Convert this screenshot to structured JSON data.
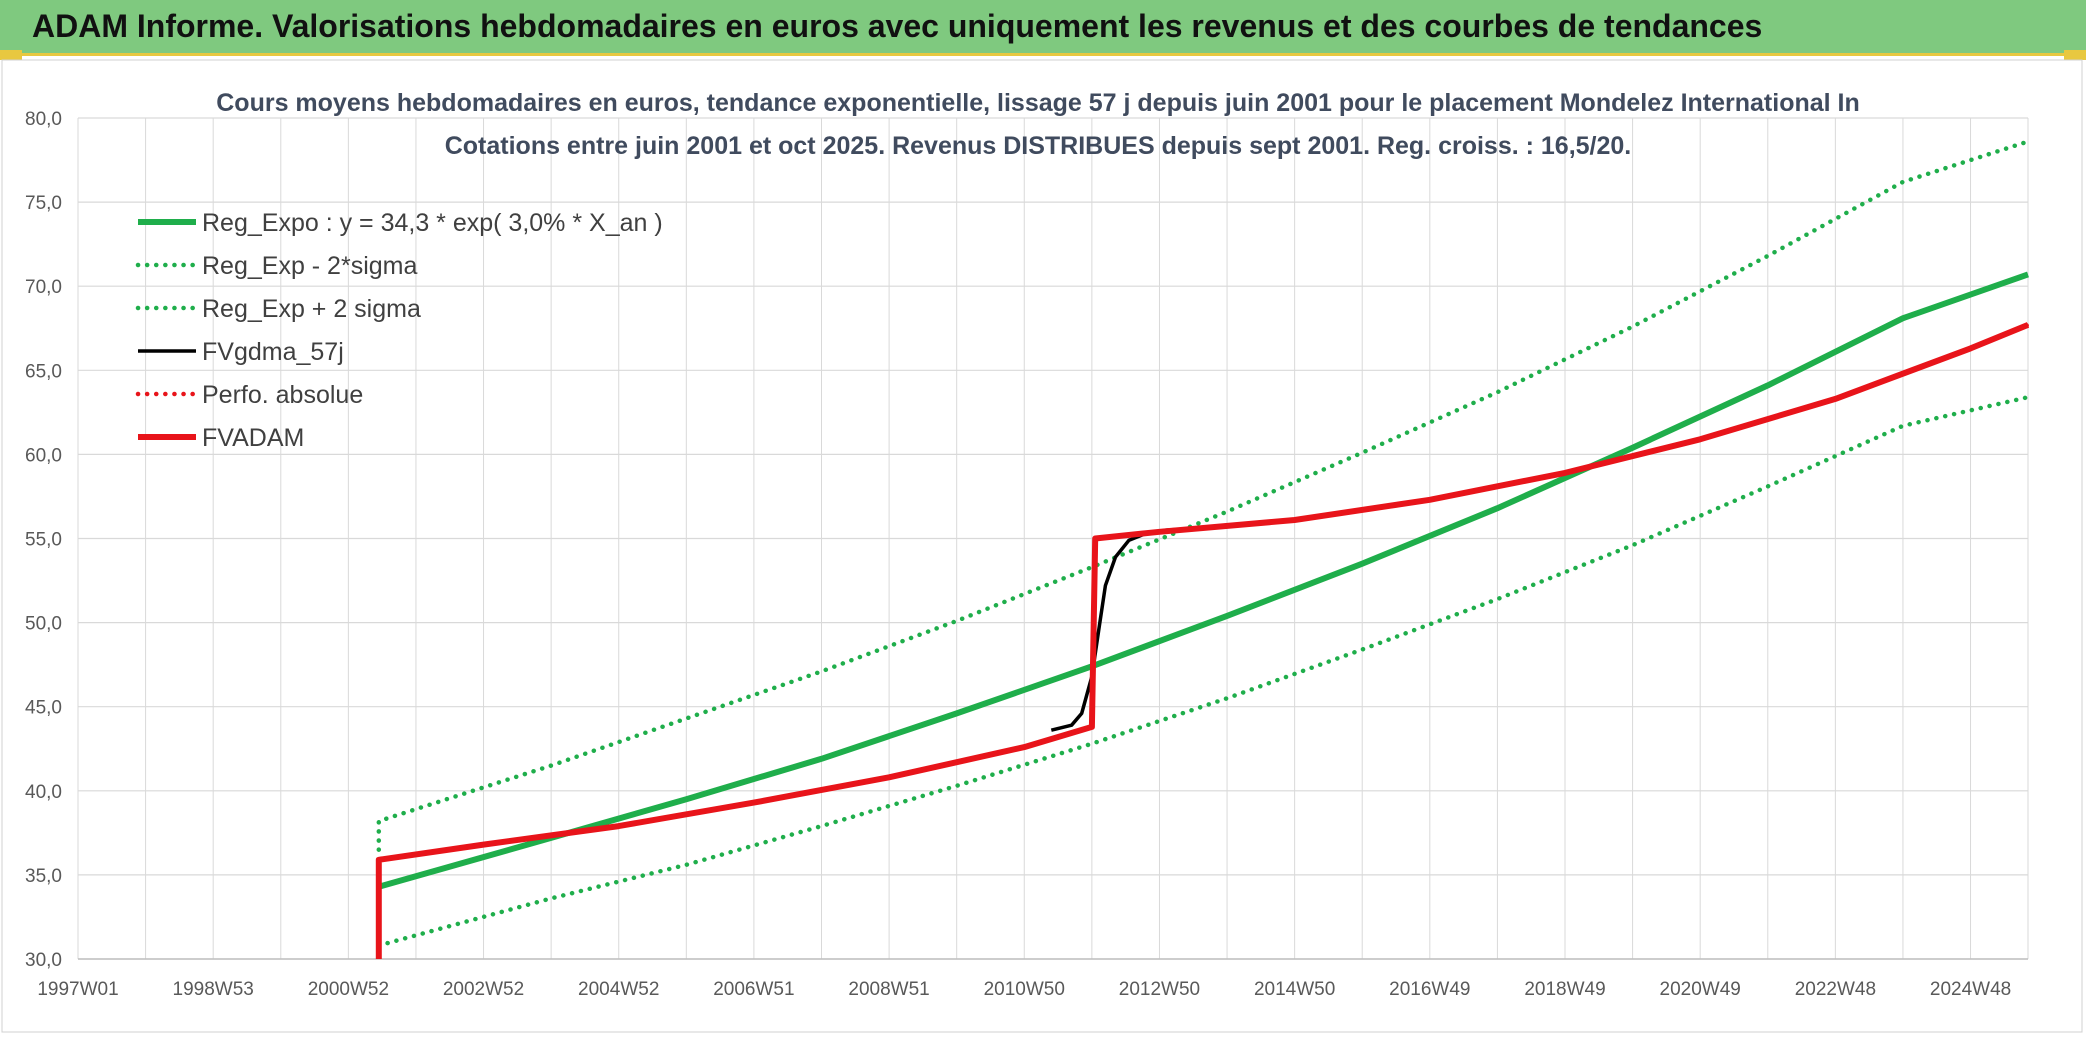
{
  "banner": {
    "title": "ADAM Informe. Valorisations hebdomadaires en euros avec uniquement les revenus et des courbes de tendances"
  },
  "colors": {
    "banner_bg": "#7fc97f",
    "accent": "#e8c840",
    "green": "#1fae4b",
    "red": "#e8141a",
    "black": "#000000",
    "grid": "#d9d9d9"
  },
  "chart_data": {
    "type": "line",
    "title_lines": [
      "Cours moyens hebdomadaires en euros, tendance exponentielle, lissage 57 j depuis juin 2001 pour le placement Mondelez International In",
      "Cotations entre juin 2001 et oct 2025. Revenus DISTRIBUES depuis sept 2001. Reg. croiss. : 16,5/20."
    ],
    "xlabel": "",
    "ylabel": "",
    "ylim": [
      30,
      80
    ],
    "xlim": [
      1997.0,
      2025.85
    ],
    "y_ticks": [
      "30,0",
      "35,0",
      "40,0",
      "45,0",
      "50,0",
      "55,0",
      "60,0",
      "65,0",
      "70,0",
      "75,0",
      "80,0"
    ],
    "x_ticks": [
      {
        "label": "1997W01",
        "year": 1997.0
      },
      {
        "label": "1998W53",
        "year": 1999.0
      },
      {
        "label": "2000W52",
        "year": 2001.0
      },
      {
        "label": "2002W52",
        "year": 2003.0
      },
      {
        "label": "2004W52",
        "year": 2005.0
      },
      {
        "label": "2006W51",
        "year": 2007.0
      },
      {
        "label": "2008W51",
        "year": 2009.0
      },
      {
        "label": "2010W50",
        "year": 2011.0
      },
      {
        "label": "2012W50",
        "year": 2013.0
      },
      {
        "label": "2014W50",
        "year": 2015.0
      },
      {
        "label": "2016W49",
        "year": 2017.0
      },
      {
        "label": "2018W49",
        "year": 2019.0
      },
      {
        "label": "2020W49",
        "year": 2021.0
      },
      {
        "label": "2022W48",
        "year": 2023.0
      },
      {
        "label": "2024W48",
        "year": 2025.0
      }
    ],
    "grid": true,
    "legend_position": "top-left",
    "series": [
      {
        "name": "Reg_Expo : y = 34,3 * exp( 3,0% *  X_an )",
        "style": "solid-thick",
        "color": "#1fae4b",
        "x": [
          2001.45,
          2004,
          2006,
          2008,
          2010,
          2012,
          2014,
          2016,
          2018,
          2020,
          2022,
          2024,
          2025.85
        ],
        "y": [
          34.3,
          37.2,
          39.5,
          41.9,
          44.6,
          47.4,
          50.4,
          53.5,
          56.8,
          60.4,
          64.1,
          68.1,
          70.7
        ]
      },
      {
        "name": "Reg_Exp - 2*sigma",
        "style": "dotted",
        "color": "#1fae4b",
        "x": [
          2001.45,
          2004,
          2006,
          2008,
          2010,
          2012,
          2014,
          2016,
          2018,
          2020,
          2022,
          2024,
          2025.85
        ],
        "y": [
          30.8,
          33.6,
          35.6,
          37.9,
          40.3,
          42.8,
          45.5,
          48.4,
          51.4,
          54.6,
          58.1,
          61.7,
          63.4
        ]
      },
      {
        "name": "Reg_Exp + 2 sigma",
        "style": "dotted",
        "color": "#1fae4b",
        "x": [
          2001.45,
          2001.45,
          2004,
          2006,
          2008,
          2010,
          2012,
          2014,
          2016,
          2018,
          2020,
          2022,
          2024,
          2025.85
        ],
        "y": [
          36.5,
          38.2,
          41.5,
          44.3,
          47.1,
          50.1,
          53.3,
          56.6,
          60.1,
          63.7,
          67.6,
          71.8,
          76.2,
          78.6
        ]
      },
      {
        "name": "FVgdma_57j",
        "style": "solid",
        "color": "#000000",
        "x": [
          2011.4,
          2011.7,
          2011.85,
          2012.0,
          2012.1,
          2012.2,
          2012.35,
          2012.55,
          2012.8,
          2013.1,
          2013.5
        ],
        "y": [
          43.6,
          43.9,
          44.6,
          46.8,
          49.5,
          52.2,
          53.9,
          54.9,
          55.3,
          55.5,
          55.6
        ]
      },
      {
        "name": "Perfo. absolue",
        "style": "dotted",
        "color": "#e8141a",
        "x": [
          2001.45,
          2003,
          2005,
          2007,
          2009,
          2011,
          2012.0,
          2012.05,
          2013,
          2015,
          2017,
          2019,
          2021,
          2023,
          2025,
          2025.85
        ],
        "y": [
          35.9,
          36.8,
          37.9,
          39.3,
          40.8,
          42.6,
          43.8,
          55.0,
          55.4,
          56.1,
          57.3,
          58.9,
          60.9,
          63.3,
          66.3,
          67.7
        ]
      },
      {
        "name": "FVADAM",
        "style": "solid-thick",
        "color": "#e8141a",
        "x": [
          2001.45,
          2001.45,
          2003,
          2005,
          2007,
          2009,
          2011,
          2012.0,
          2012.05,
          2013,
          2015,
          2017,
          2019,
          2021,
          2023,
          2025,
          2025.85
        ],
        "y": [
          30.0,
          35.9,
          36.8,
          37.9,
          39.3,
          40.8,
          42.6,
          43.8,
          55.0,
          55.4,
          56.1,
          57.3,
          58.9,
          60.9,
          63.3,
          66.3,
          67.7
        ]
      }
    ]
  }
}
